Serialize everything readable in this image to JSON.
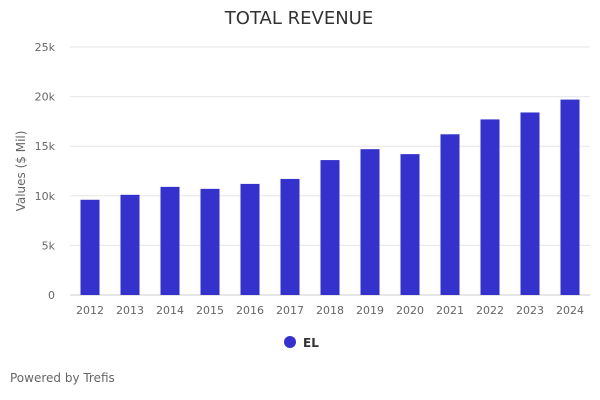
{
  "chart_data": {
    "type": "bar",
    "title": "TOTAL REVENUE",
    "xlabel": "",
    "ylabel": "Values ($ Mil)",
    "categories": [
      "2012",
      "2013",
      "2014",
      "2015",
      "2016",
      "2017",
      "2018",
      "2019",
      "2020",
      "2021",
      "2022",
      "2023",
      "2024"
    ],
    "series": [
      {
        "name": "EL",
        "color": "#3431cc",
        "values": [
          9600,
          10100,
          10900,
          10700,
          11200,
          11700,
          13600,
          14700,
          14200,
          16200,
          17700,
          18400,
          19700
        ]
      }
    ],
    "ylim": [
      0,
      25000
    ],
    "yticks": [
      0,
      5000,
      10000,
      15000,
      20000,
      25000
    ],
    "ytick_labels": [
      "0",
      "5k",
      "10k",
      "15k",
      "20k",
      "25k"
    ],
    "grid": true,
    "legend_position": "bottom-center"
  },
  "credit": "Powered by Trefis",
  "colors": {
    "bar": "#3431cc",
    "grid": "#e6e6e6",
    "text": "#666666",
    "title": "#333333"
  }
}
